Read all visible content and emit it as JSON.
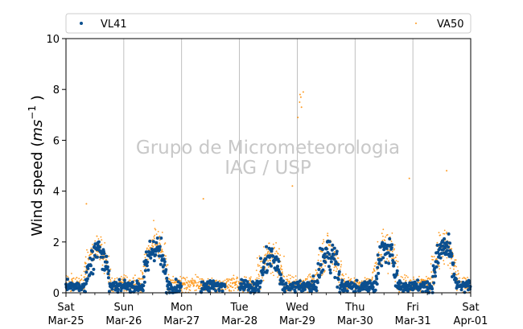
{
  "chart_data": {
    "type": "scatter",
    "title": "",
    "xlabel": "",
    "ylabel": "Wind speed",
    "ylabel_unit": "ms",
    "ylabel_exponent": "−1",
    "ylim": [
      0,
      10
    ],
    "yticks": [
      0,
      2,
      4,
      6,
      8,
      10
    ],
    "xlim": [
      "2023-03-25",
      "2023-04-01"
    ],
    "xticks": [
      {
        "day": "Sat",
        "date": "Mar-25"
      },
      {
        "day": "Sun",
        "date": "Mar-26"
      },
      {
        "day": "Mon",
        "date": "Mar-27"
      },
      {
        "day": "Tue",
        "date": "Mar-28"
      },
      {
        "day": "Wed",
        "date": "Mar-29"
      },
      {
        "day": "Thu",
        "date": "Mar-30"
      },
      {
        "day": "Fri",
        "date": "Mar-31"
      },
      {
        "day": "Sat",
        "date": "Apr-01"
      }
    ],
    "grid": "vertical",
    "legend_position": "top",
    "watermark": [
      "Grupo de Micrometeorologia",
      "IAG / USP"
    ],
    "series": [
      {
        "name": "VL41",
        "color": "#0b4f8f",
        "marker": "dot",
        "daily_profile": [
          {
            "day": 0,
            "peak": 1.7,
            "spread": 0.35
          },
          {
            "day": 1,
            "peak": 1.8,
            "spread": 0.4
          },
          {
            "day": 2,
            "peak": 0.3,
            "spread": 0.15
          },
          {
            "day": 3,
            "peak": 1.4,
            "spread": 0.4
          },
          {
            "day": 4,
            "peak": 1.6,
            "spread": 0.45
          },
          {
            "day": 5,
            "peak": 1.7,
            "spread": 0.4
          },
          {
            "day": 6,
            "peak": 1.8,
            "spread": 0.4
          }
        ]
      },
      {
        "name": "VA50",
        "color": "#ff9a1f",
        "marker": "small-dot",
        "outliers": [
          [
            "2023-03-29 00:15",
            6.9
          ],
          [
            "2023-03-29 01:00",
            7.5
          ],
          [
            "2023-03-29 01:10",
            7.8
          ],
          [
            "2023-03-29 01:30",
            7.7
          ],
          [
            "2023-03-29 02:30",
            7.9
          ],
          [
            "2023-03-29 01:45",
            7.3
          ],
          [
            "2023-03-31 14:00",
            4.8
          ],
          [
            "2023-03-30 22:30",
            4.5
          ],
          [
            "2023-03-28 22:00",
            4.2
          ],
          [
            "2023-03-27 09:00",
            3.7
          ],
          [
            "2023-03-25 08:30",
            3.5
          ]
        ]
      }
    ]
  }
}
